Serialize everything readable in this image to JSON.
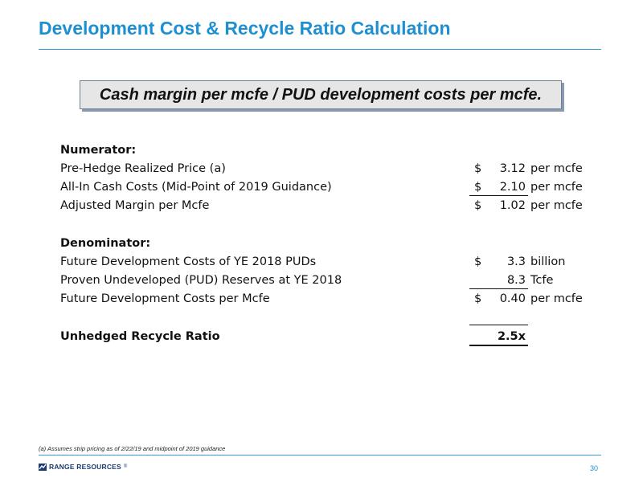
{
  "slide": {
    "title": "Development Cost & Recycle Ratio Calculation",
    "formula": "Cash margin per mcfe / PUD development costs per mcfe.",
    "footnote": "(a) Assumes strip pricing as of 2/22/19 and midpoint of 2019 guidance",
    "logo_text": "RANGE RESOURCES",
    "logo_mark": "®",
    "page_number": "30",
    "accent_color": "#1e90d2"
  },
  "calculation": {
    "numerator": {
      "heading": "Numerator:",
      "rows": [
        {
          "label": "Pre-Hedge Realized Price (a)",
          "currency": "$",
          "value": "3.12",
          "unit": "per mcfe"
        },
        {
          "label": "All-In Cash Costs (Mid-Point of 2019 Guidance)",
          "currency": "$",
          "value": "2.10",
          "unit": "per mcfe"
        },
        {
          "label": "Adjusted Margin per Mcfe",
          "currency": "$",
          "value": "1.02",
          "unit": "per mcfe"
        }
      ]
    },
    "denominator": {
      "heading": "Denominator:",
      "rows": [
        {
          "label": "Future Development Costs of YE 2018 PUDs",
          "currency": "$",
          "value": "3.3",
          "unit": "billion"
        },
        {
          "label": "Proven Undeveloped (PUD) Reserves at YE 2018",
          "currency": "",
          "value": "8.3",
          "unit": "Tcfe"
        },
        {
          "label": "Future Development Costs per Mcfe",
          "currency": "$",
          "value": "0.40",
          "unit": "per mcfe"
        }
      ]
    },
    "result": {
      "label": "Unhedged Recycle Ratio",
      "value": "2.5x"
    }
  }
}
